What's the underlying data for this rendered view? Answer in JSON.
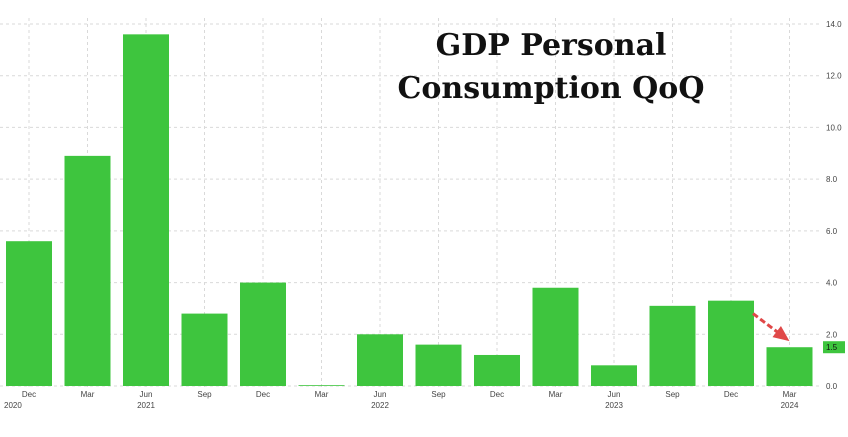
{
  "chart_data": {
    "type": "bar",
    "title_lines": [
      "GDP Personal",
      "Consumption QoQ"
    ],
    "categories": [
      "Dec",
      "Mar",
      "Jun",
      "Sep",
      "Dec",
      "Mar",
      "Jun",
      "Sep",
      "Dec",
      "Mar",
      "Jun",
      "Sep",
      "Dec",
      "Mar"
    ],
    "years": [
      "2020",
      "2021",
      "2022",
      "2023",
      "2024"
    ],
    "values": [
      5.6,
      8.9,
      13.6,
      2.8,
      4.0,
      0.0,
      2.0,
      1.6,
      1.2,
      3.8,
      0.8,
      3.1,
      3.3,
      1.5
    ],
    "ylim": [
      -1,
      14.8
    ],
    "yticks": [
      "0.0",
      "2.0",
      "4.0",
      "6.0",
      "8.0",
      "10.0",
      "12.0",
      "14.0"
    ],
    "last_value_label": "1.5",
    "bar_color": "#3ec53e",
    "arrow_color": "#e04848",
    "grid": true
  }
}
